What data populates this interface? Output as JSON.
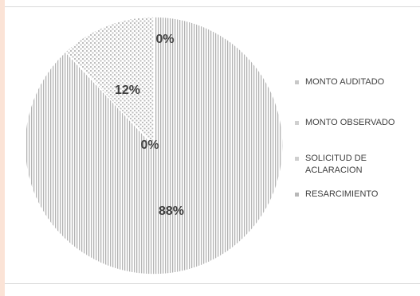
{
  "chart_data": {
    "type": "pie",
    "categories": [
      "MONTO AUDITADO",
      "MONTO OBSERVADO",
      "SOLICITUD DE ACLARACION",
      "RESARCIMIENTO"
    ],
    "values": [
      88,
      12,
      0,
      0
    ],
    "data_labels": [
      "88%",
      "12%",
      "0%",
      "0%"
    ],
    "unit": "%",
    "title": "",
    "legend_placement": "right",
    "colors": [
      "#bfbfbf",
      "#a6a6a6",
      "#d9d9d9",
      "#c8c8c8"
    ]
  },
  "legend": {
    "items": [
      {
        "label": "MONTO AUDITADO"
      },
      {
        "label": "MONTO OBSERVADO"
      },
      {
        "label": "SOLICITUD DE ACLARACION"
      },
      {
        "label": "RESARCIMIENTO"
      }
    ]
  }
}
